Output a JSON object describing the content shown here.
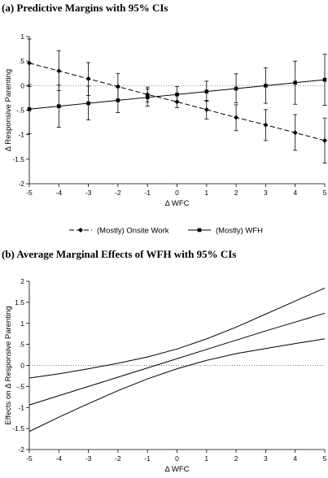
{
  "chart_data": [
    {
      "type": "line",
      "title": "(a) Predictive Margins with 95% CIs",
      "xlabel": "Δ WFC",
      "ylabel": "Δ Responsive Parenting",
      "x": [
        -5,
        -4,
        -3,
        -2,
        -1,
        0,
        1,
        2,
        3,
        4,
        5
      ],
      "xlim": [
        -5,
        5
      ],
      "ylim": [
        -2,
        1
      ],
      "yticks": [
        1,
        0.5,
        0,
        -0.5,
        -1,
        -1.5,
        -2
      ],
      "ytick_labels": [
        "1",
        ".5",
        "0",
        "-.5",
        "-1",
        "-1.5",
        "-2"
      ],
      "xticks": [
        -5,
        -4,
        -3,
        -2,
        -1,
        0,
        1,
        2,
        3,
        4,
        5
      ],
      "xtick_labels": [
        "-5",
        "-4",
        "-3",
        "-2",
        "-1",
        "0",
        "1",
        "2",
        "3",
        "4",
        "5"
      ],
      "grid": false,
      "reference_line": 0,
      "legend_position": "bottom",
      "series": [
        {
          "name": "(Mostly) Onsite Work",
          "marker": "diamond",
          "style": "dashed",
          "values": [
            0.46,
            0.3,
            0.14,
            -0.02,
            -0.18,
            -0.33,
            -0.49,
            -0.65,
            -0.8,
            -0.96,
            -1.12
          ],
          "ci_lower": [
            -0.02,
            -0.1,
            -0.2,
            -0.29,
            -0.33,
            -0.45,
            -0.68,
            -0.92,
            -1.12,
            -1.32,
            -1.58
          ],
          "ci_upper": [
            0.95,
            0.71,
            0.47,
            0.25,
            -0.03,
            -0.2,
            -0.3,
            -0.39,
            -0.49,
            -0.59,
            -0.66
          ]
        },
        {
          "name": "(Mostly) WFH",
          "marker": "square",
          "style": "solid",
          "values": [
            -0.48,
            -0.42,
            -0.36,
            -0.3,
            -0.24,
            -0.18,
            -0.12,
            -0.06,
            0.0,
            0.06,
            0.12
          ],
          "ci_lower": [
            -0.98,
            -0.85,
            -0.7,
            -0.55,
            -0.42,
            -0.34,
            -0.32,
            -0.35,
            -0.36,
            -0.38,
            -0.4
          ],
          "ci_upper": [
            0.02,
            0.01,
            -0.01,
            -0.04,
            -0.07,
            -0.02,
            0.09,
            0.24,
            0.36,
            0.5,
            0.64
          ]
        }
      ]
    },
    {
      "type": "line",
      "title": "(b) Average Marginal Effects of WFH with 95% CIs",
      "xlabel": "Δ WFC",
      "ylabel": "Effects on Δ Responsive Parenting",
      "x": [
        -5,
        -4,
        -3,
        -2,
        -1,
        0,
        1,
        2,
        3,
        4,
        5
      ],
      "xlim": [
        -5,
        5
      ],
      "ylim": [
        -2,
        2
      ],
      "yticks": [
        2,
        1.5,
        1,
        0.5,
        0,
        -0.5,
        -1,
        -1.5,
        -2
      ],
      "ytick_labels": [
        "2",
        "1.5",
        "1",
        ".5",
        "0",
        "-.5",
        "-1",
        "-1.5",
        "-2"
      ],
      "xticks": [
        -5,
        -4,
        -3,
        -2,
        -1,
        0,
        1,
        2,
        3,
        4,
        5
      ],
      "xtick_labels": [
        "-5",
        "-4",
        "-3",
        "-2",
        "-1",
        "0",
        "1",
        "2",
        "3",
        "4",
        "5"
      ],
      "grid": false,
      "reference_line": 0,
      "series": [
        {
          "style": "solid",
          "values": [
            -0.94,
            -0.72,
            -0.5,
            -0.28,
            -0.06,
            0.16,
            0.38,
            0.6,
            0.82,
            1.03,
            1.24
          ],
          "ci_lower": [
            -1.57,
            -1.23,
            -0.91,
            -0.6,
            -0.32,
            -0.08,
            0.12,
            0.28,
            0.4,
            0.52,
            0.63
          ],
          "ci_upper": [
            -0.3,
            -0.2,
            -0.08,
            0.05,
            0.2,
            0.39,
            0.63,
            0.91,
            1.22,
            1.53,
            1.84
          ]
        }
      ]
    }
  ]
}
